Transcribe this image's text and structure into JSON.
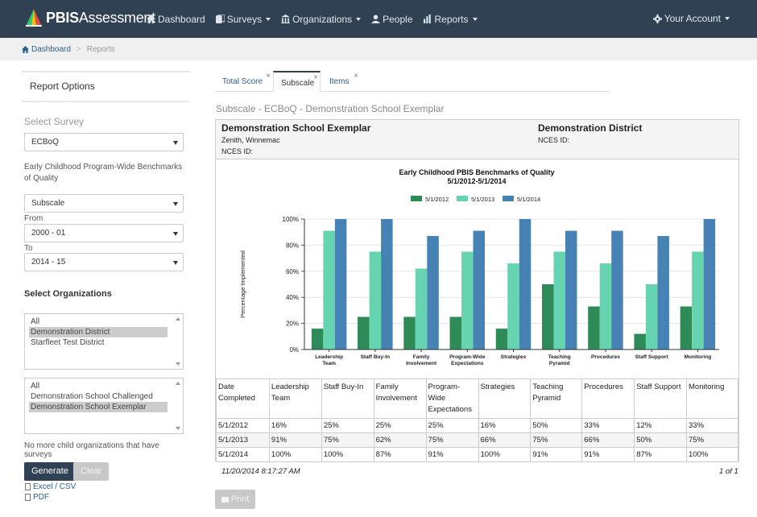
{
  "brand": {
    "bold": "PBIS",
    "light": "Assessment"
  },
  "nav": {
    "dashboard": "Dashboard",
    "surveys": "Surveys",
    "organizations": "Organizations",
    "people": "People",
    "reports": "Reports",
    "account": "Your Account"
  },
  "breadcrumb": {
    "home": "Dashboard",
    "current": "Reports"
  },
  "left": {
    "title": "Report Options",
    "select_survey_label": "Select Survey",
    "survey_value": "ECBoQ",
    "survey_description": "Early Childhood Program-Wide Benchmarks of Quality",
    "report_type_value": "Subscale",
    "from_label": "From",
    "from_value": "2000 - 01",
    "to_label": "To",
    "to_value": "2014 - 15",
    "select_orgs_label": "Select Organizations",
    "districts": [
      {
        "label": "All",
        "selected": false
      },
      {
        "label": "Demonstration District",
        "selected": true
      },
      {
        "label": "Starfleet Test District",
        "selected": false
      }
    ],
    "schools": [
      {
        "label": "All",
        "selected": false
      },
      {
        "label": "Demonstration School Challenged",
        "selected": false
      },
      {
        "label": "Demonstration School Exemplar",
        "selected": true
      }
    ],
    "no_more_text": "No more child organizations that have surveys",
    "generate_label": "Generate",
    "clear_label": "Clear",
    "excel_label": "Excel / CSV",
    "pdf_label": "PDF"
  },
  "tabs": [
    {
      "label": "Total Score",
      "active": false,
      "close": "×"
    },
    {
      "label": "Subscale",
      "active": true,
      "close": "×"
    },
    {
      "label": "Items",
      "active": false,
      "close": "×"
    }
  ],
  "report": {
    "title": "Subscale - ECBoQ - Demonstration School Exemplar",
    "school_name": "Demonstration School Exemplar",
    "school_location": "Zenith, Winnemac",
    "school_nces": "NCES ID:",
    "district_name": "Demonstration District",
    "district_nces": "NCES ID:",
    "timestamp": "11/20/2014 8:17:27 AM",
    "page_count": "1 of 1",
    "print_label": "Print"
  },
  "chart_data": {
    "type": "bar",
    "title": "Early Childhood PBIS Benchmarks of Quality",
    "subtitle": "5/1/2012-5/1/2014",
    "ylabel": "Percentage Implemented",
    "xlabel": "",
    "ylim": [
      0,
      100
    ],
    "yticks": [
      "0%",
      "20%",
      "40%",
      "60%",
      "80%",
      "100%"
    ],
    "legend_position": "top-center",
    "grid": true,
    "categories": [
      [
        "Leadership",
        "Team"
      ],
      [
        "Staff Buy-In"
      ],
      [
        "Family",
        "Involvement"
      ],
      [
        "Program-Wide",
        "Expectations"
      ],
      [
        "Strategies"
      ],
      [
        "Teaching",
        "Pyramid"
      ],
      [
        "Procedures"
      ],
      [
        "Staff Support"
      ],
      [
        "Monitoring"
      ]
    ],
    "series": [
      {
        "name": "5/1/2012",
        "color": "#2e8b57",
        "values": [
          16,
          25,
          25,
          25,
          16,
          50,
          33,
          12,
          33
        ]
      },
      {
        "name": "5/1/2013",
        "color": "#66d4b0",
        "values": [
          91,
          75,
          62,
          75,
          66,
          75,
          66,
          50,
          75
        ]
      },
      {
        "name": "5/1/2014",
        "color": "#4682b4",
        "values": [
          100,
          100,
          87,
          91,
          100,
          91,
          91,
          87,
          100
        ]
      }
    ]
  },
  "table": {
    "headers": [
      "Date Completed",
      "Leadership Team",
      "Staff Buy-In",
      "Family Involvement",
      "Program-Wide Expectations",
      "Strategies",
      "Teaching Pyramid",
      "Procedures",
      "Staff Support",
      "Monitoring"
    ],
    "rows": [
      [
        "5/1/2012",
        "16%",
        "25%",
        "25%",
        "25%",
        "16%",
        "50%",
        "33%",
        "12%",
        "33%"
      ],
      [
        "5/1/2013",
        "91%",
        "75%",
        "62%",
        "75%",
        "66%",
        "75%",
        "66%",
        "50%",
        "75%"
      ],
      [
        "5/1/2014",
        "100%",
        "100%",
        "87%",
        "91%",
        "100%",
        "91%",
        "91%",
        "87%",
        "100%"
      ]
    ]
  }
}
